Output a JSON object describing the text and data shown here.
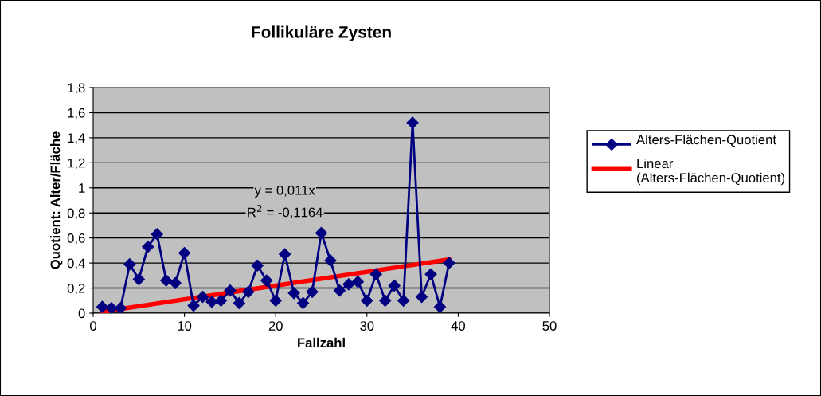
{
  "chart_data": {
    "type": "line",
    "title": "Follikuläre Zysten",
    "xlabel": "Fallzahl",
    "ylabel": "Quotient: Alter/Fläche",
    "x": [
      1,
      2,
      3,
      4,
      5,
      6,
      7,
      8,
      9,
      10,
      11,
      12,
      13,
      14,
      15,
      16,
      17,
      18,
      19,
      20,
      21,
      22,
      23,
      24,
      25,
      26,
      27,
      28,
      29,
      30,
      31,
      32,
      33,
      34,
      35,
      36,
      37,
      38,
      39
    ],
    "series": [
      {
        "name": "Alters-Flächen-Quotient",
        "color": "#000080",
        "marker": "diamond",
        "values": [
          0.05,
          0.04,
          0.04,
          0.39,
          0.27,
          0.53,
          0.63,
          0.26,
          0.24,
          0.48,
          0.06,
          0.13,
          0.09,
          0.1,
          0.18,
          0.08,
          0.17,
          0.38,
          0.26,
          0.1,
          0.47,
          0.16,
          0.08,
          0.17,
          0.64,
          0.42,
          0.18,
          0.23,
          0.25,
          0.1,
          0.31,
          0.1,
          0.22,
          0.1,
          1.52,
          0.13,
          0.31,
          0.05,
          0.4
        ]
      },
      {
        "name": "Linear (Alters-Flächen-Quotient)",
        "color": "#ff0000",
        "marker": "none",
        "x": [
          1,
          39
        ],
        "values": [
          0.011,
          0.429
        ]
      }
    ],
    "annotations": [
      "y = 0,011x",
      "R$^{2}$ = -0,1164"
    ],
    "xlim": [
      0,
      50
    ],
    "xticks": [
      0,
      10,
      20,
      30,
      40,
      50
    ],
    "ylim": [
      0,
      1.8
    ],
    "yticks": [
      0,
      {
        "value": 0.2,
        "label": "0,2"
      },
      {
        "value": 0.4,
        "label": "0,4"
      },
      {
        "value": 0.6,
        "label": "0,6"
      },
      {
        "value": 0.8,
        "label": "0,8"
      },
      1,
      {
        "value": 1.2,
        "label": "1,2"
      },
      {
        "value": 1.4,
        "label": "1,4"
      },
      {
        "value": 1.6,
        "label": "1,6"
      },
      {
        "value": 1.8,
        "label": "1,8"
      }
    ],
    "grid": "y",
    "legend": "right"
  }
}
